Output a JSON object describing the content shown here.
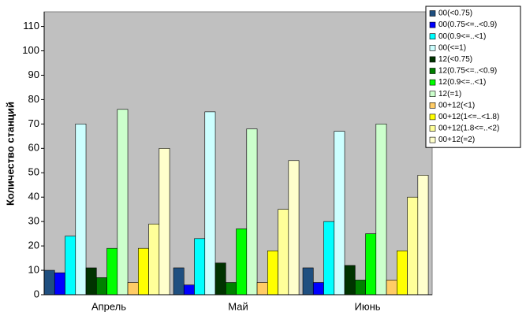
{
  "chart_data": {
    "type": "bar",
    "y_label": "Количество станций",
    "categories": [
      "Апрель",
      "Май",
      "Июнь"
    ],
    "series": [
      {
        "name": "00(<0.75)",
        "color": "#1f4f80",
        "values": [
          10,
          11,
          11
        ]
      },
      {
        "name": "00(0.75<=..<0.9)",
        "color": "#0000ff",
        "values": [
          9,
          4,
          5
        ]
      },
      {
        "name": "00(0.9<=..<1)",
        "color": "#00ffff",
        "values": [
          24,
          23,
          30
        ]
      },
      {
        "name": "00(<=1)",
        "color": "#ccffff",
        "values": [
          70,
          75,
          67
        ]
      },
      {
        "name": "12(<0.75)",
        "color": "#003300",
        "values": [
          11,
          13,
          12
        ]
      },
      {
        "name": "12(0.75<=..<0.9)",
        "color": "#008000",
        "values": [
          7,
          5,
          6
        ]
      },
      {
        "name": "12(0.9<=..<1)",
        "color": "#00ff00",
        "values": [
          19,
          27,
          25
        ]
      },
      {
        "name": "12(=1)",
        "color": "#ccffcc",
        "values": [
          76,
          68,
          70
        ]
      },
      {
        "name": "00+12(<1)",
        "color": "#ffcc66",
        "values": [
          5,
          5,
          6
        ]
      },
      {
        "name": "00+12(1<=..<1.8)",
        "color": "#ffff00",
        "values": [
          19,
          18,
          18
        ]
      },
      {
        "name": "00+12(1.8<=..<2)",
        "color": "#ffff99",
        "values": [
          29,
          35,
          40
        ]
      },
      {
        "name": "00+12(=2)",
        "color": "#ffffcc",
        "values": [
          60,
          55,
          49
        ]
      }
    ],
    "ylim": [
      0,
      116
    ],
    "yticks": [
      0,
      10,
      20,
      30,
      40,
      50,
      60,
      70,
      80,
      90,
      100,
      110
    ],
    "grid": false,
    "legend": "top-right",
    "plot_background": "#c0c0c0"
  }
}
